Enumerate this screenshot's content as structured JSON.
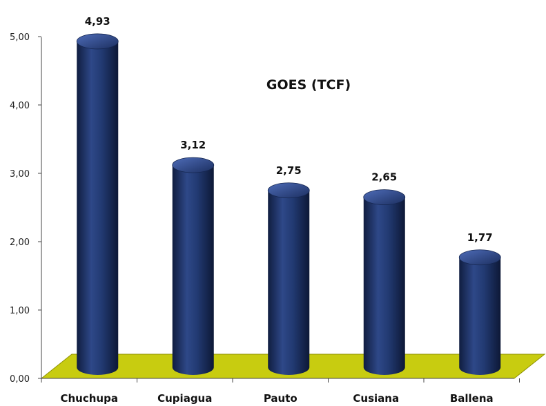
{
  "chart_data": {
    "type": "bar",
    "title": "GOES (TCF)",
    "xlabel": "",
    "ylabel": "",
    "categories": [
      "Chuchupa",
      "Cupiagua",
      "Pauto",
      "Cusiana",
      "Ballena"
    ],
    "values": [
      4.93,
      3.12,
      2.75,
      2.65,
      1.77
    ],
    "value_labels": [
      "4,93",
      "3,12",
      "2,75",
      "2,65",
      "1,77"
    ],
    "yticks": [
      "0,00",
      "1,00",
      "2,00",
      "3,00",
      "4,00",
      "5,00"
    ],
    "ylim": [
      0,
      5
    ],
    "grid": false,
    "legend": "none",
    "colors": {
      "bar": "#1f3468",
      "bar_highlight": "#3d5aa0",
      "bar_shadow": "#0e1a3a",
      "floor": "#c8cc10",
      "floor_edge": "#8f9200",
      "axis": "#444444"
    }
  }
}
